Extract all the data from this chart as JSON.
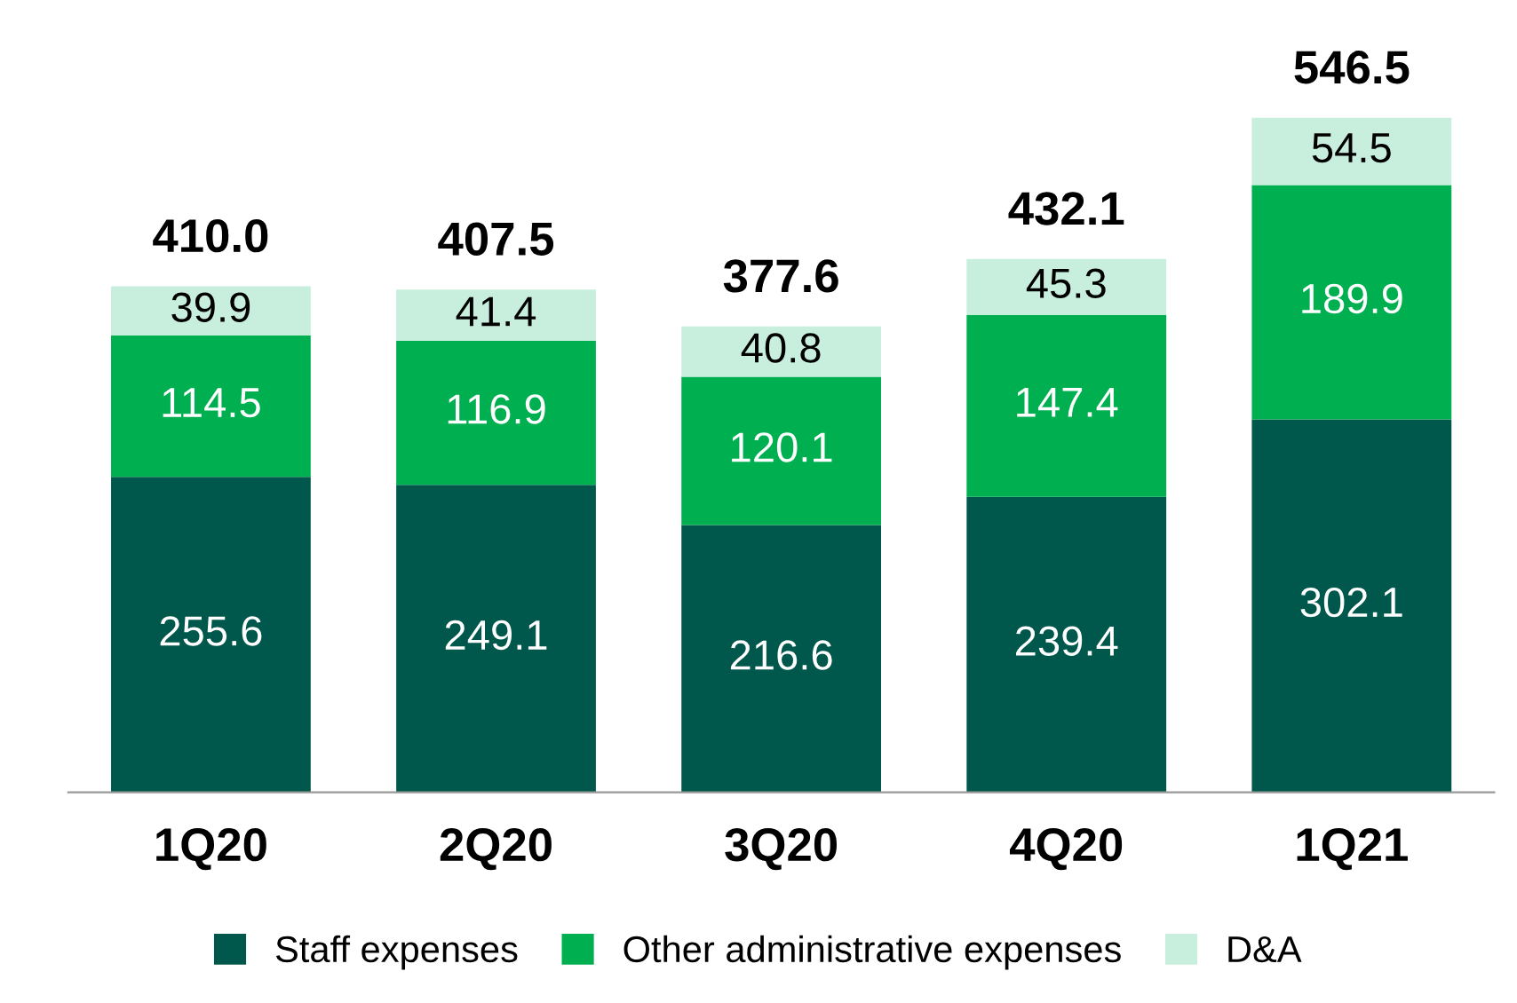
{
  "chart_data": {
    "type": "bar",
    "stacked": true,
    "categories": [
      "1Q20",
      "2Q20",
      "3Q20",
      "4Q20",
      "1Q21"
    ],
    "series": [
      {
        "name": "Staff expenses",
        "color": "#00574b",
        "values": [
          255.6,
          249.1,
          216.6,
          239.4,
          302.1
        ]
      },
      {
        "name": "Other administrative expenses",
        "color": "#00b050",
        "values": [
          114.5,
          116.9,
          120.1,
          147.4,
          189.9
        ]
      },
      {
        "name": "D&A",
        "color": "#c8eedd",
        "values": [
          39.9,
          41.4,
          40.8,
          45.3,
          54.5
        ]
      }
    ],
    "data_labels": true,
    "totals": [
      "410.0",
      "407.5",
      "377.6",
      "432.1",
      "546.5"
    ],
    "legend": "bottom",
    "grid": false,
    "tick_labels": "x"
  }
}
